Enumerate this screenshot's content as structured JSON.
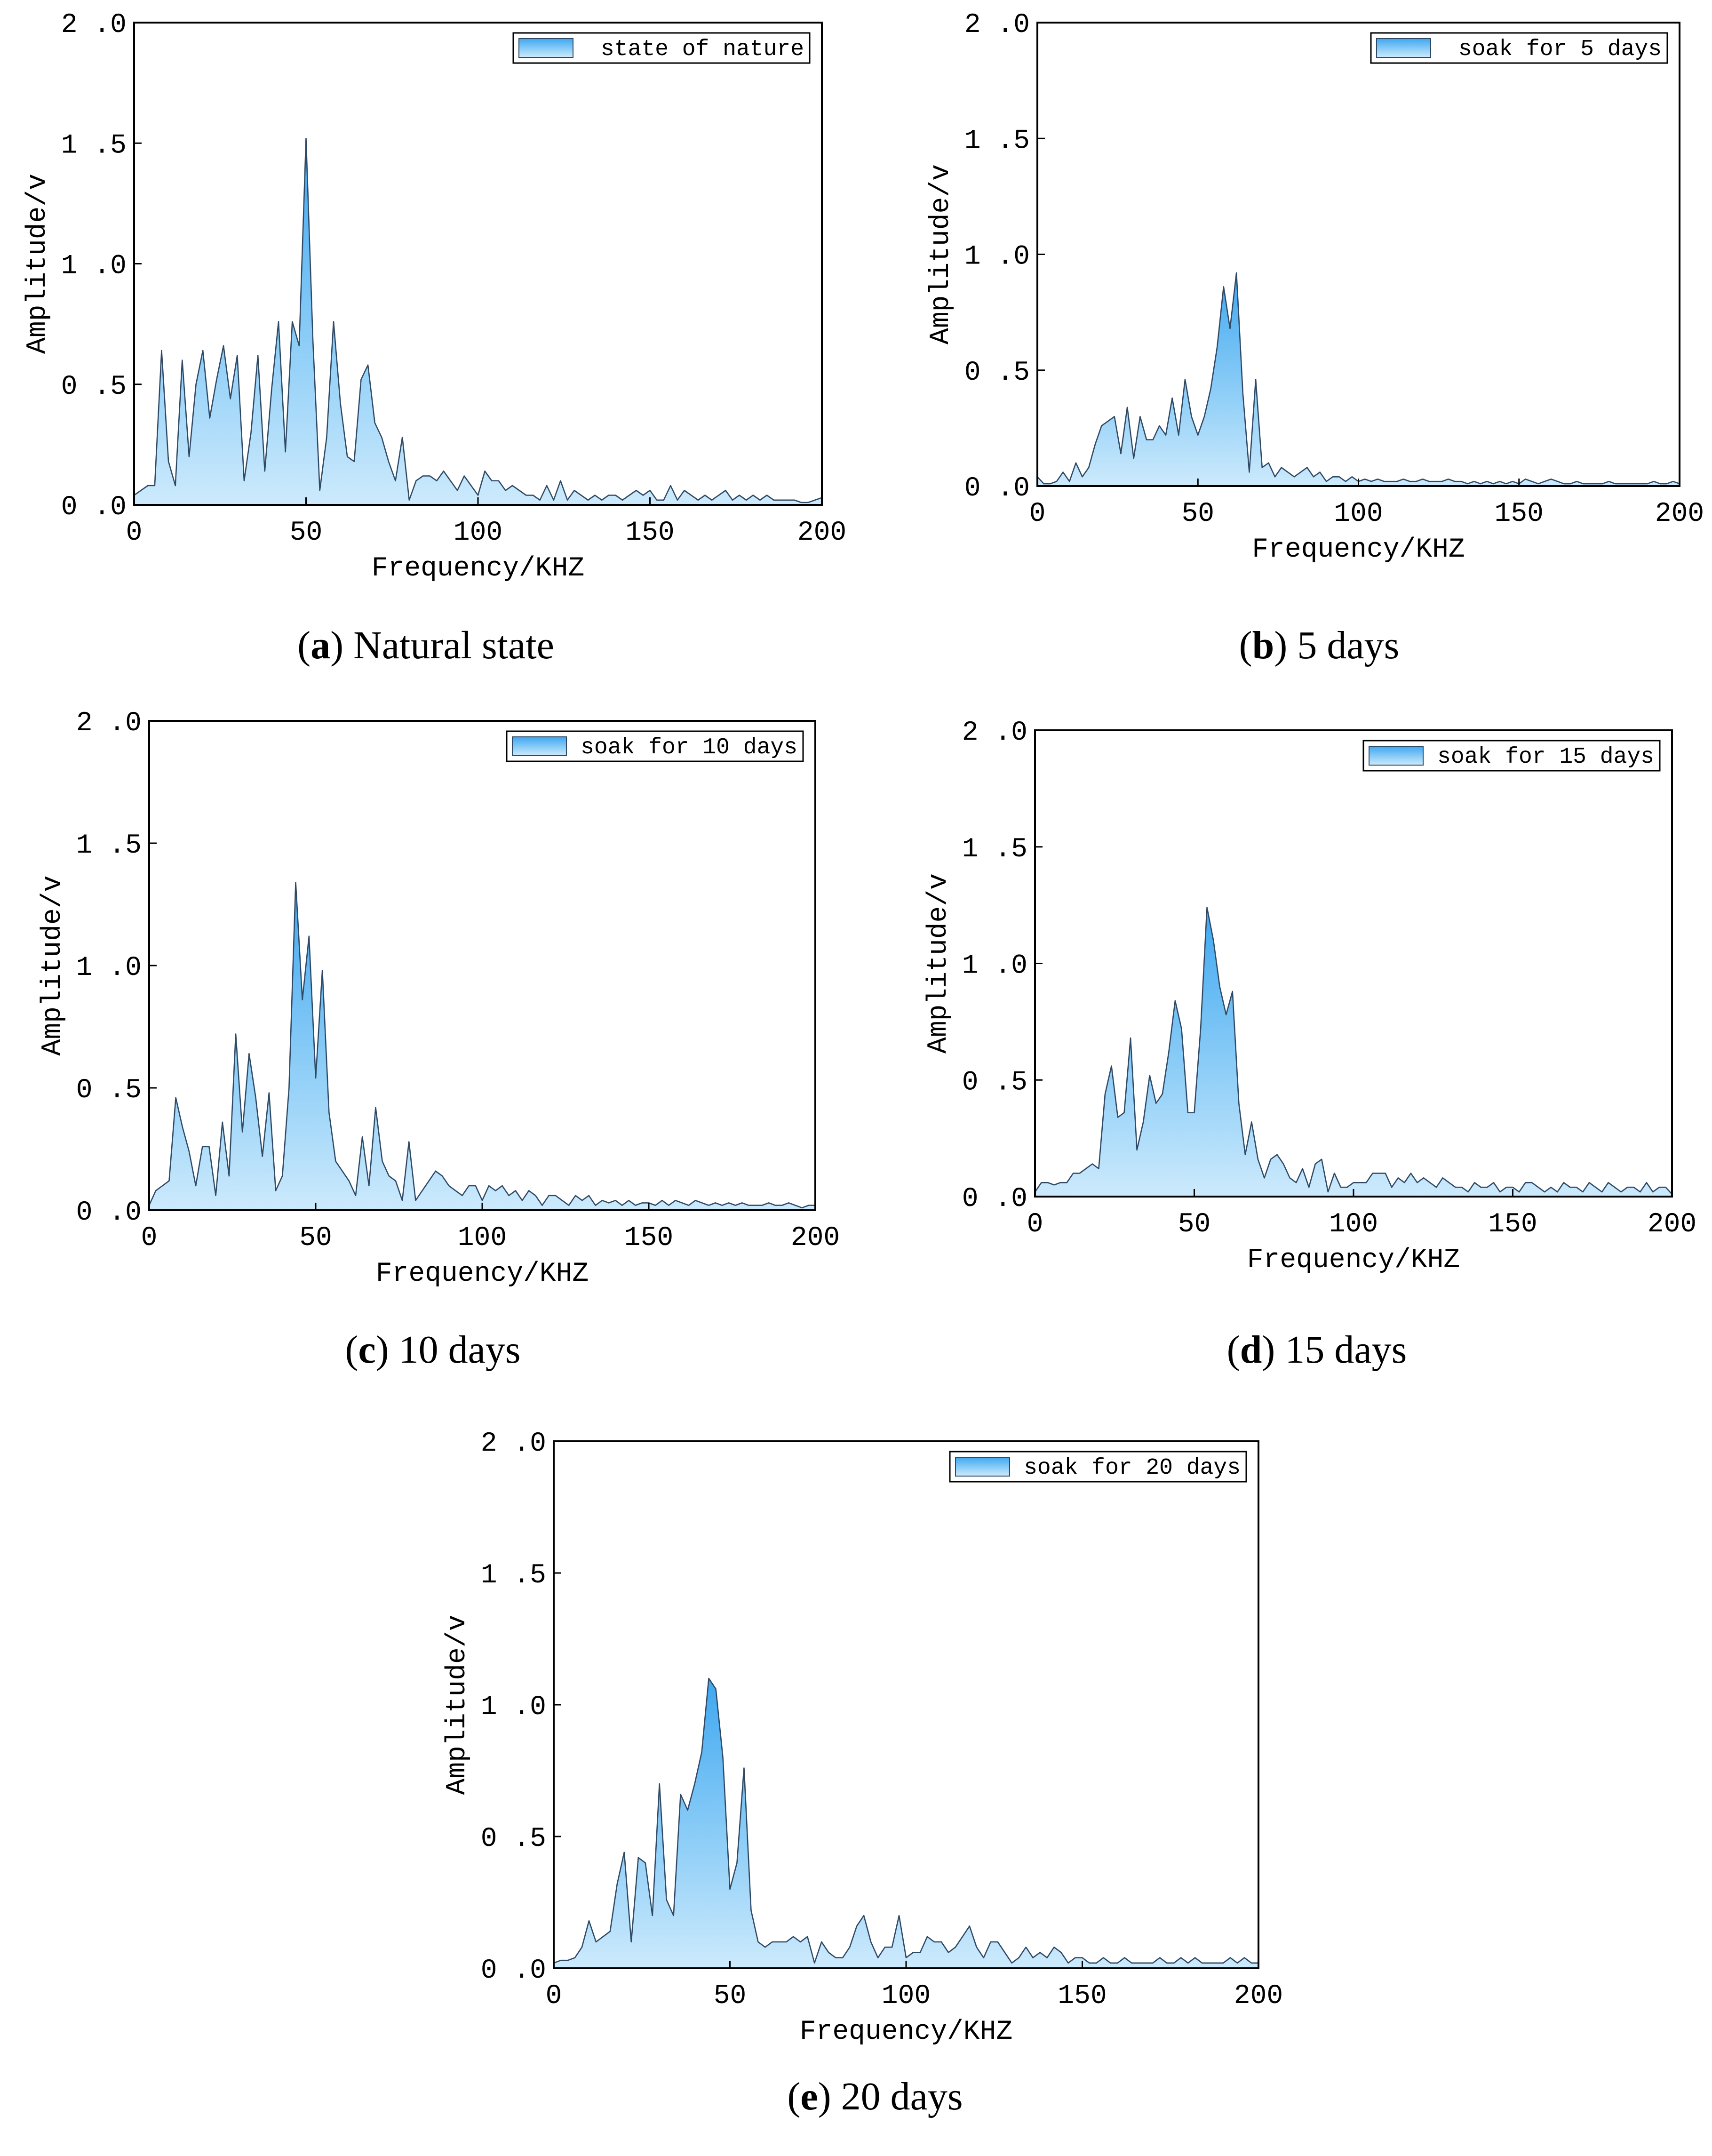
{
  "chart_data": [
    {
      "id": "a",
      "type": "area",
      "caption_letter": "a",
      "caption_text": "Natural state",
      "xlabel": "Frequency/KHZ",
      "ylabel": "Amplitude/v",
      "xlim": [
        0,
        200
      ],
      "ylim": [
        0,
        2.0
      ],
      "xticks": [
        0,
        50,
        100,
        150,
        200
      ],
      "yticks": [
        "0.0",
        "0.5",
        "1.0",
        "1.5",
        "2.0"
      ],
      "legend": "state of nature",
      "legend_position": "top-right",
      "x": [
        0,
        2,
        4,
        6,
        8,
        10,
        12,
        14,
        16,
        18,
        20,
        22,
        24,
        26,
        28,
        30,
        32,
        34,
        36,
        38,
        40,
        42,
        44,
        46,
        48,
        50,
        52,
        54,
        56,
        58,
        60,
        62,
        64,
        66,
        68,
        70,
        72,
        74,
        76,
        78,
        80,
        82,
        84,
        86,
        88,
        90,
        92,
        94,
        96,
        98,
        100,
        102,
        104,
        106,
        108,
        110,
        112,
        114,
        116,
        118,
        120,
        122,
        124,
        126,
        128,
        130,
        132,
        134,
        136,
        138,
        140,
        142,
        144,
        146,
        148,
        150,
        152,
        154,
        156,
        158,
        160,
        162,
        164,
        166,
        168,
        170,
        172,
        174,
        176,
        178,
        180,
        182,
        184,
        186,
        188,
        190,
        192,
        194,
        196,
        198,
        200
      ],
      "y": [
        0.04,
        0.06,
        0.08,
        0.08,
        0.64,
        0.18,
        0.08,
        0.6,
        0.2,
        0.5,
        0.64,
        0.36,
        0.52,
        0.66,
        0.44,
        0.62,
        0.1,
        0.3,
        0.62,
        0.14,
        0.48,
        0.76,
        0.22,
        0.76,
        0.66,
        1.52,
        0.68,
        0.06,
        0.28,
        0.76,
        0.42,
        0.2,
        0.18,
        0.52,
        0.58,
        0.34,
        0.28,
        0.18,
        0.1,
        0.28,
        0.02,
        0.1,
        0.12,
        0.12,
        0.1,
        0.14,
        0.1,
        0.06,
        0.12,
        0.08,
        0.04,
        0.14,
        0.1,
        0.1,
        0.06,
        0.08,
        0.06,
        0.04,
        0.04,
        0.02,
        0.08,
        0.02,
        0.1,
        0.02,
        0.06,
        0.04,
        0.02,
        0.04,
        0.02,
        0.04,
        0.04,
        0.02,
        0.04,
        0.06,
        0.04,
        0.06,
        0.02,
        0.02,
        0.08,
        0.02,
        0.06,
        0.04,
        0.02,
        0.04,
        0.02,
        0.04,
        0.06,
        0.02,
        0.04,
        0.02,
        0.04,
        0.02,
        0.04,
        0.02,
        0.02,
        0.02,
        0.02,
        0.01,
        0.01,
        0.02,
        0.03
      ]
    },
    {
      "id": "b",
      "type": "area",
      "caption_letter": "b",
      "caption_text": "5 days",
      "xlabel": "Frequency/KHZ",
      "ylabel": "Amplitude/v",
      "xlim": [
        0,
        200
      ],
      "ylim": [
        0,
        2.0
      ],
      "xticks": [
        0,
        50,
        100,
        150,
        200
      ],
      "yticks": [
        "0.0",
        "0.5",
        "1.0",
        "1.5",
        "2.0"
      ],
      "legend": "soak for 5 days",
      "legend_position": "top-right",
      "x": [
        0,
        2,
        4,
        6,
        8,
        10,
        12,
        14,
        16,
        18,
        20,
        22,
        24,
        26,
        28,
        30,
        32,
        34,
        36,
        38,
        40,
        42,
        44,
        46,
        48,
        50,
        52,
        54,
        56,
        58,
        60,
        62,
        64,
        66,
        68,
        70,
        72,
        74,
        76,
        78,
        80,
        82,
        84,
        86,
        88,
        90,
        92,
        94,
        96,
        98,
        100,
        102,
        104,
        106,
        108,
        110,
        112,
        114,
        116,
        118,
        120,
        122,
        124,
        126,
        128,
        130,
        132,
        134,
        136,
        138,
        140,
        142,
        144,
        146,
        148,
        150,
        152,
        154,
        156,
        158,
        160,
        162,
        164,
        166,
        168,
        170,
        172,
        174,
        176,
        178,
        180,
        182,
        184,
        186,
        188,
        190,
        192,
        194,
        196,
        198,
        200
      ],
      "y": [
        0.04,
        0.01,
        0.01,
        0.02,
        0.06,
        0.02,
        0.1,
        0.04,
        0.08,
        0.18,
        0.26,
        0.28,
        0.3,
        0.14,
        0.34,
        0.12,
        0.3,
        0.2,
        0.2,
        0.26,
        0.22,
        0.38,
        0.22,
        0.46,
        0.3,
        0.22,
        0.3,
        0.42,
        0.6,
        0.86,
        0.68,
        0.92,
        0.4,
        0.06,
        0.46,
        0.08,
        0.1,
        0.04,
        0.08,
        0.06,
        0.04,
        0.06,
        0.08,
        0.04,
        0.06,
        0.02,
        0.04,
        0.04,
        0.02,
        0.04,
        0.02,
        0.03,
        0.02,
        0.03,
        0.02,
        0.02,
        0.02,
        0.03,
        0.02,
        0.02,
        0.03,
        0.02,
        0.02,
        0.02,
        0.03,
        0.02,
        0.02,
        0.01,
        0.02,
        0.01,
        0.02,
        0.01,
        0.02,
        0.01,
        0.02,
        0.01,
        0.03,
        0.02,
        0.01,
        0.02,
        0.03,
        0.02,
        0.01,
        0.01,
        0.02,
        0.01,
        0.01,
        0.01,
        0.01,
        0.02,
        0.01,
        0.01,
        0.01,
        0.01,
        0.01,
        0.01,
        0.02,
        0.01,
        0.01,
        0.02,
        0.01
      ]
    },
    {
      "id": "c",
      "type": "area",
      "caption_letter": "c",
      "caption_text": "10 days",
      "xlabel": "Frequency/KHZ",
      "ylabel": "Amplitude/v",
      "xlim": [
        0,
        200
      ],
      "ylim": [
        0,
        2.0
      ],
      "xticks": [
        0,
        50,
        100,
        150,
        200
      ],
      "yticks": [
        "0.0",
        "0.5",
        "1.0",
        "1.5",
        "2.0"
      ],
      "legend": "soak for 10 days",
      "legend_position": "top-right",
      "x": [
        0,
        2,
        4,
        6,
        8,
        10,
        12,
        14,
        16,
        18,
        20,
        22,
        24,
        26,
        28,
        30,
        32,
        34,
        36,
        38,
        40,
        42,
        44,
        46,
        48,
        50,
        52,
        54,
        56,
        58,
        60,
        62,
        64,
        66,
        68,
        70,
        72,
        74,
        76,
        78,
        80,
        82,
        84,
        86,
        88,
        90,
        92,
        94,
        96,
        98,
        100,
        102,
        104,
        106,
        108,
        110,
        112,
        114,
        116,
        118,
        120,
        122,
        124,
        126,
        128,
        130,
        132,
        134,
        136,
        138,
        140,
        142,
        144,
        146,
        148,
        150,
        152,
        154,
        156,
        158,
        160,
        162,
        164,
        166,
        168,
        170,
        172,
        174,
        176,
        178,
        180,
        182,
        184,
        186,
        188,
        190,
        192,
        194,
        196,
        198,
        200
      ],
      "y": [
        0.02,
        0.08,
        0.1,
        0.12,
        0.46,
        0.34,
        0.24,
        0.1,
        0.26,
        0.26,
        0.06,
        0.36,
        0.14,
        0.72,
        0.32,
        0.64,
        0.46,
        0.22,
        0.48,
        0.08,
        0.14,
        0.5,
        1.34,
        0.86,
        1.12,
        0.54,
        0.98,
        0.4,
        0.2,
        0.16,
        0.12,
        0.06,
        0.3,
        0.1,
        0.42,
        0.2,
        0.14,
        0.12,
        0.04,
        0.28,
        0.04,
        0.08,
        0.12,
        0.16,
        0.14,
        0.1,
        0.08,
        0.06,
        0.1,
        0.1,
        0.04,
        0.1,
        0.08,
        0.1,
        0.06,
        0.08,
        0.04,
        0.08,
        0.06,
        0.02,
        0.06,
        0.06,
        0.04,
        0.02,
        0.06,
        0.04,
        0.06,
        0.02,
        0.04,
        0.03,
        0.04,
        0.02,
        0.04,
        0.02,
        0.03,
        0.03,
        0.02,
        0.04,
        0.02,
        0.04,
        0.03,
        0.02,
        0.04,
        0.03,
        0.02,
        0.03,
        0.02,
        0.03,
        0.02,
        0.03,
        0.02,
        0.02,
        0.02,
        0.03,
        0.02,
        0.02,
        0.03,
        0.02,
        0.01,
        0.02,
        0.02
      ]
    },
    {
      "id": "d",
      "type": "area",
      "caption_letter": "d",
      "caption_text": "15 days",
      "xlabel": "Frequency/KHZ",
      "ylabel": "Amplitude/v",
      "xlim": [
        0,
        200
      ],
      "ylim": [
        0,
        2.0
      ],
      "xticks": [
        0,
        50,
        100,
        150,
        200
      ],
      "yticks": [
        "0.0",
        "0.5",
        "1.0",
        "1.5",
        "2.0"
      ],
      "legend": "soak for 15 days",
      "legend_position": "top-right",
      "x": [
        0,
        2,
        4,
        6,
        8,
        10,
        12,
        14,
        16,
        18,
        20,
        22,
        24,
        26,
        28,
        30,
        32,
        34,
        36,
        38,
        40,
        42,
        44,
        46,
        48,
        50,
        52,
        54,
        56,
        58,
        60,
        62,
        64,
        66,
        68,
        70,
        72,
        74,
        76,
        78,
        80,
        82,
        84,
        86,
        88,
        90,
        92,
        94,
        96,
        98,
        100,
        102,
        104,
        106,
        108,
        110,
        112,
        114,
        116,
        118,
        120,
        122,
        124,
        126,
        128,
        130,
        132,
        134,
        136,
        138,
        140,
        142,
        144,
        146,
        148,
        150,
        152,
        154,
        156,
        158,
        160,
        162,
        164,
        166,
        168,
        170,
        172,
        174,
        176,
        178,
        180,
        182,
        184,
        186,
        188,
        190,
        192,
        194,
        196,
        198,
        200
      ],
      "y": [
        0.02,
        0.06,
        0.06,
        0.05,
        0.06,
        0.06,
        0.1,
        0.1,
        0.12,
        0.14,
        0.12,
        0.44,
        0.56,
        0.34,
        0.36,
        0.68,
        0.2,
        0.32,
        0.52,
        0.4,
        0.44,
        0.62,
        0.84,
        0.72,
        0.36,
        0.36,
        0.72,
        1.24,
        1.1,
        0.9,
        0.78,
        0.88,
        0.4,
        0.18,
        0.32,
        0.16,
        0.08,
        0.16,
        0.18,
        0.14,
        0.08,
        0.06,
        0.12,
        0.04,
        0.14,
        0.16,
        0.02,
        0.1,
        0.04,
        0.04,
        0.06,
        0.06,
        0.06,
        0.1,
        0.1,
        0.1,
        0.04,
        0.08,
        0.06,
        0.1,
        0.06,
        0.08,
        0.06,
        0.04,
        0.08,
        0.06,
        0.04,
        0.04,
        0.02,
        0.06,
        0.04,
        0.04,
        0.06,
        0.02,
        0.04,
        0.04,
        0.02,
        0.06,
        0.06,
        0.04,
        0.02,
        0.04,
        0.02,
        0.06,
        0.04,
        0.04,
        0.02,
        0.06,
        0.04,
        0.02,
        0.06,
        0.04,
        0.02,
        0.04,
        0.04,
        0.02,
        0.06,
        0.02,
        0.04,
        0.04,
        0.01
      ]
    },
    {
      "id": "e",
      "type": "area",
      "caption_letter": "e",
      "caption_text": "20 days",
      "xlabel": "Frequency/KHZ",
      "ylabel": "Amplitude/v",
      "xlim": [
        0,
        200
      ],
      "ylim": [
        0,
        2.0
      ],
      "xticks": [
        0,
        50,
        100,
        150,
        200
      ],
      "yticks": [
        "0.0",
        "0.5",
        "1.0",
        "1.5",
        "2.0"
      ],
      "legend": "soak for 20 days",
      "legend_position": "top-right",
      "x": [
        0,
        2,
        4,
        6,
        8,
        10,
        12,
        14,
        16,
        18,
        20,
        22,
        24,
        26,
        28,
        30,
        32,
        34,
        36,
        38,
        40,
        42,
        44,
        46,
        48,
        50,
        52,
        54,
        56,
        58,
        60,
        62,
        64,
        66,
        68,
        70,
        72,
        74,
        76,
        78,
        80,
        82,
        84,
        86,
        88,
        90,
        92,
        94,
        96,
        98,
        100,
        102,
        104,
        106,
        108,
        110,
        112,
        114,
        116,
        118,
        120,
        122,
        124,
        126,
        128,
        130,
        132,
        134,
        136,
        138,
        140,
        142,
        144,
        146,
        148,
        150,
        152,
        154,
        156,
        158,
        160,
        162,
        164,
        166,
        168,
        170,
        172,
        174,
        176,
        178,
        180,
        182,
        184,
        186,
        188,
        190,
        192,
        194,
        196,
        198,
        200
      ],
      "y": [
        0.02,
        0.03,
        0.03,
        0.04,
        0.08,
        0.18,
        0.1,
        0.12,
        0.14,
        0.32,
        0.44,
        0.1,
        0.42,
        0.4,
        0.2,
        0.7,
        0.26,
        0.2,
        0.66,
        0.6,
        0.7,
        0.82,
        1.1,
        1.06,
        0.8,
        0.3,
        0.4,
        0.76,
        0.22,
        0.1,
        0.08,
        0.1,
        0.1,
        0.1,
        0.12,
        0.1,
        0.12,
        0.02,
        0.1,
        0.06,
        0.04,
        0.04,
        0.08,
        0.16,
        0.2,
        0.1,
        0.04,
        0.08,
        0.08,
        0.2,
        0.04,
        0.06,
        0.06,
        0.12,
        0.1,
        0.1,
        0.06,
        0.08,
        0.12,
        0.16,
        0.08,
        0.04,
        0.1,
        0.1,
        0.06,
        0.02,
        0.04,
        0.08,
        0.04,
        0.06,
        0.04,
        0.08,
        0.06,
        0.02,
        0.04,
        0.04,
        0.02,
        0.02,
        0.04,
        0.02,
        0.02,
        0.04,
        0.02,
        0.02,
        0.02,
        0.02,
        0.04,
        0.02,
        0.02,
        0.04,
        0.02,
        0.04,
        0.02,
        0.02,
        0.02,
        0.02,
        0.04,
        0.02,
        0.04,
        0.02,
        0.02
      ]
    }
  ]
}
